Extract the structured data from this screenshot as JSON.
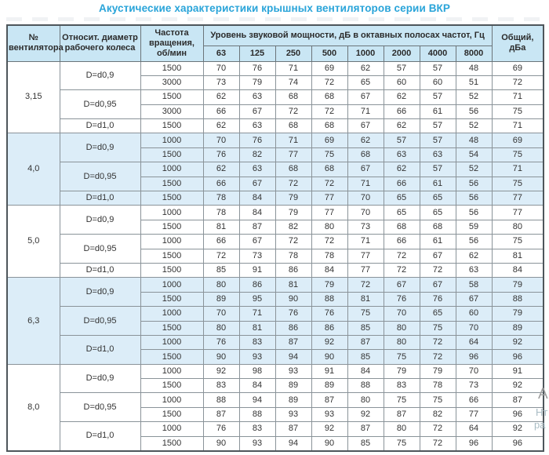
{
  "title": "Акустические характеристики крышных вентиляторов серии ВКР",
  "table": {
    "headers": {
      "fan_number": "№ вентилятора",
      "diameter": "Относит. диаметр рабочего колеса",
      "speed": "Частота вращения, об/мин",
      "spl_group": "Уровень звуковой мощности, дБ в октавных полосах частот, Гц",
      "frequencies": [
        "63",
        "125",
        "250",
        "500",
        "1000",
        "2000",
        "4000",
        "8000"
      ],
      "total": "Общий, дБа"
    },
    "groups": [
      {
        "fan": "3,15",
        "shaded": false,
        "subgroups": [
          {
            "diameter": "D=d0,9",
            "rows": [
              {
                "speed": "1500",
                "levels": [
                  70,
                  76,
                  71,
                  69,
                  62,
                  57,
                  57,
                  48
                ],
                "total": 69
              },
              {
                "speed": "3000",
                "levels": [
                  73,
                  79,
                  74,
                  72,
                  65,
                  60,
                  60,
                  51
                ],
                "total": 72
              }
            ]
          },
          {
            "diameter": "D=d0,95",
            "rows": [
              {
                "speed": "1500",
                "levels": [
                  62,
                  63,
                  68,
                  68,
                  67,
                  62,
                  57,
                  52
                ],
                "total": 71
              },
              {
                "speed": "3000",
                "levels": [
                  66,
                  67,
                  72,
                  72,
                  71,
                  66,
                  61,
                  56
                ],
                "total": 75
              }
            ]
          },
          {
            "diameter": "D=d1,0",
            "rows": [
              {
                "speed": "1500",
                "levels": [
                  62,
                  63,
                  68,
                  68,
                  67,
                  62,
                  57,
                  52
                ],
                "total": 71
              }
            ]
          }
        ]
      },
      {
        "fan": "4,0",
        "shaded": true,
        "subgroups": [
          {
            "diameter": "D=d0,9",
            "rows": [
              {
                "speed": "1000",
                "levels": [
                  70,
                  76,
                  71,
                  69,
                  62,
                  57,
                  57,
                  48
                ],
                "total": 69
              },
              {
                "speed": "1500",
                "levels": [
                  76,
                  82,
                  77,
                  75,
                  68,
                  63,
                  63,
                  54
                ],
                "total": 75
              }
            ]
          },
          {
            "diameter": "D=d0,95",
            "rows": [
              {
                "speed": "1000",
                "levels": [
                  62,
                  63,
                  68,
                  68,
                  67,
                  62,
                  57,
                  52
                ],
                "total": 71
              },
              {
                "speed": "1500",
                "levels": [
                  66,
                  67,
                  72,
                  72,
                  71,
                  66,
                  61,
                  56
                ],
                "total": 75
              }
            ]
          },
          {
            "diameter": "D=d1,0",
            "rows": [
              {
                "speed": "1500",
                "levels": [
                  78,
                  84,
                  79,
                  77,
                  70,
                  65,
                  65,
                  56
                ],
                "total": 77
              }
            ]
          }
        ]
      },
      {
        "fan": "5,0",
        "shaded": false,
        "subgroups": [
          {
            "diameter": "D=d0,9",
            "rows": [
              {
                "speed": "1000",
                "levels": [
                  78,
                  84,
                  79,
                  77,
                  70,
                  65,
                  65,
                  56
                ],
                "total": 77
              },
              {
                "speed": "1500",
                "levels": [
                  81,
                  87,
                  82,
                  80,
                  73,
                  68,
                  68,
                  59
                ],
                "total": 80
              }
            ]
          },
          {
            "diameter": "D=d0,95",
            "rows": [
              {
                "speed": "1000",
                "levels": [
                  66,
                  67,
                  72,
                  72,
                  71,
                  66,
                  61,
                  56
                ],
                "total": 75
              },
              {
                "speed": "1500",
                "levels": [
                  72,
                  73,
                  78,
                  78,
                  77,
                  72,
                  67,
                  62
                ],
                "total": 81
              }
            ]
          },
          {
            "diameter": "D=d1,0",
            "rows": [
              {
                "speed": "1500",
                "levels": [
                  85,
                  91,
                  86,
                  84,
                  77,
                  72,
                  72,
                  63
                ],
                "total": 84
              }
            ]
          }
        ]
      },
      {
        "fan": "6,3",
        "shaded": true,
        "subgroups": [
          {
            "diameter": "D=d0,9",
            "rows": [
              {
                "speed": "1000",
                "levels": [
                  80,
                  86,
                  81,
                  79,
                  72,
                  67,
                  67,
                  58
                ],
                "total": 79
              },
              {
                "speed": "1500",
                "levels": [
                  89,
                  95,
                  90,
                  88,
                  81,
                  76,
                  76,
                  67
                ],
                "total": 88
              }
            ]
          },
          {
            "diameter": "D=d0,95",
            "rows": [
              {
                "speed": "1000",
                "levels": [
                  70,
                  71,
                  76,
                  76,
                  75,
                  70,
                  65,
                  60
                ],
                "total": 79
              },
              {
                "speed": "1500",
                "levels": [
                  80,
                  81,
                  86,
                  86,
                  85,
                  80,
                  75,
                  70
                ],
                "total": 89
              }
            ]
          },
          {
            "diameter": "D=d1,0",
            "rows": [
              {
                "speed": "1000",
                "levels": [
                  76,
                  83,
                  87,
                  92,
                  87,
                  80,
                  72,
                  64
                ],
                "total": 92
              },
              {
                "speed": "1500",
                "levels": [
                  90,
                  93,
                  94,
                  90,
                  85,
                  75,
                  72,
                  96
                ],
                "total": 96
              }
            ]
          }
        ]
      },
      {
        "fan": "8,0",
        "shaded": false,
        "subgroups": [
          {
            "diameter": "D=d0,9",
            "rows": [
              {
                "speed": "1000",
                "levels": [
                  92,
                  98,
                  93,
                  91,
                  84,
                  79,
                  79,
                  70
                ],
                "total": 91
              },
              {
                "speed": "1500",
                "levels": [
                  83,
                  84,
                  89,
                  89,
                  88,
                  83,
                  78,
                  73
                ],
                "total": 92
              }
            ]
          },
          {
            "diameter": "D=d0,95",
            "rows": [
              {
                "speed": "1000",
                "levels": [
                  88,
                  94,
                  89,
                  87,
                  80,
                  75,
                  75,
                  66
                ],
                "total": 87
              },
              {
                "speed": "1500",
                "levels": [
                  87,
                  88,
                  93,
                  93,
                  92,
                  87,
                  82,
                  77
                ],
                "total": 96
              }
            ]
          },
          {
            "diameter": "D=d1,0",
            "rows": [
              {
                "speed": "1000",
                "levels": [
                  76,
                  83,
                  87,
                  92,
                  87,
                  80,
                  72,
                  64
                ],
                "total": 92
              },
              {
                "speed": "1500",
                "levels": [
                  90,
                  93,
                  94,
                  90,
                  85,
                  75,
                  72,
                  96
                ],
                "total": 96
              }
            ]
          }
        ]
      }
    ]
  },
  "watermark": {
    "fragments": [
      "Ан",
      "Нт",
      "ра"
    ]
  },
  "colors": {
    "title": "#29a4d9",
    "header_bg": "#c9e6f4",
    "shaded_row_bg": "#dcedf8",
    "border": "#8a9399",
    "outer_border": "#4e565b"
  }
}
